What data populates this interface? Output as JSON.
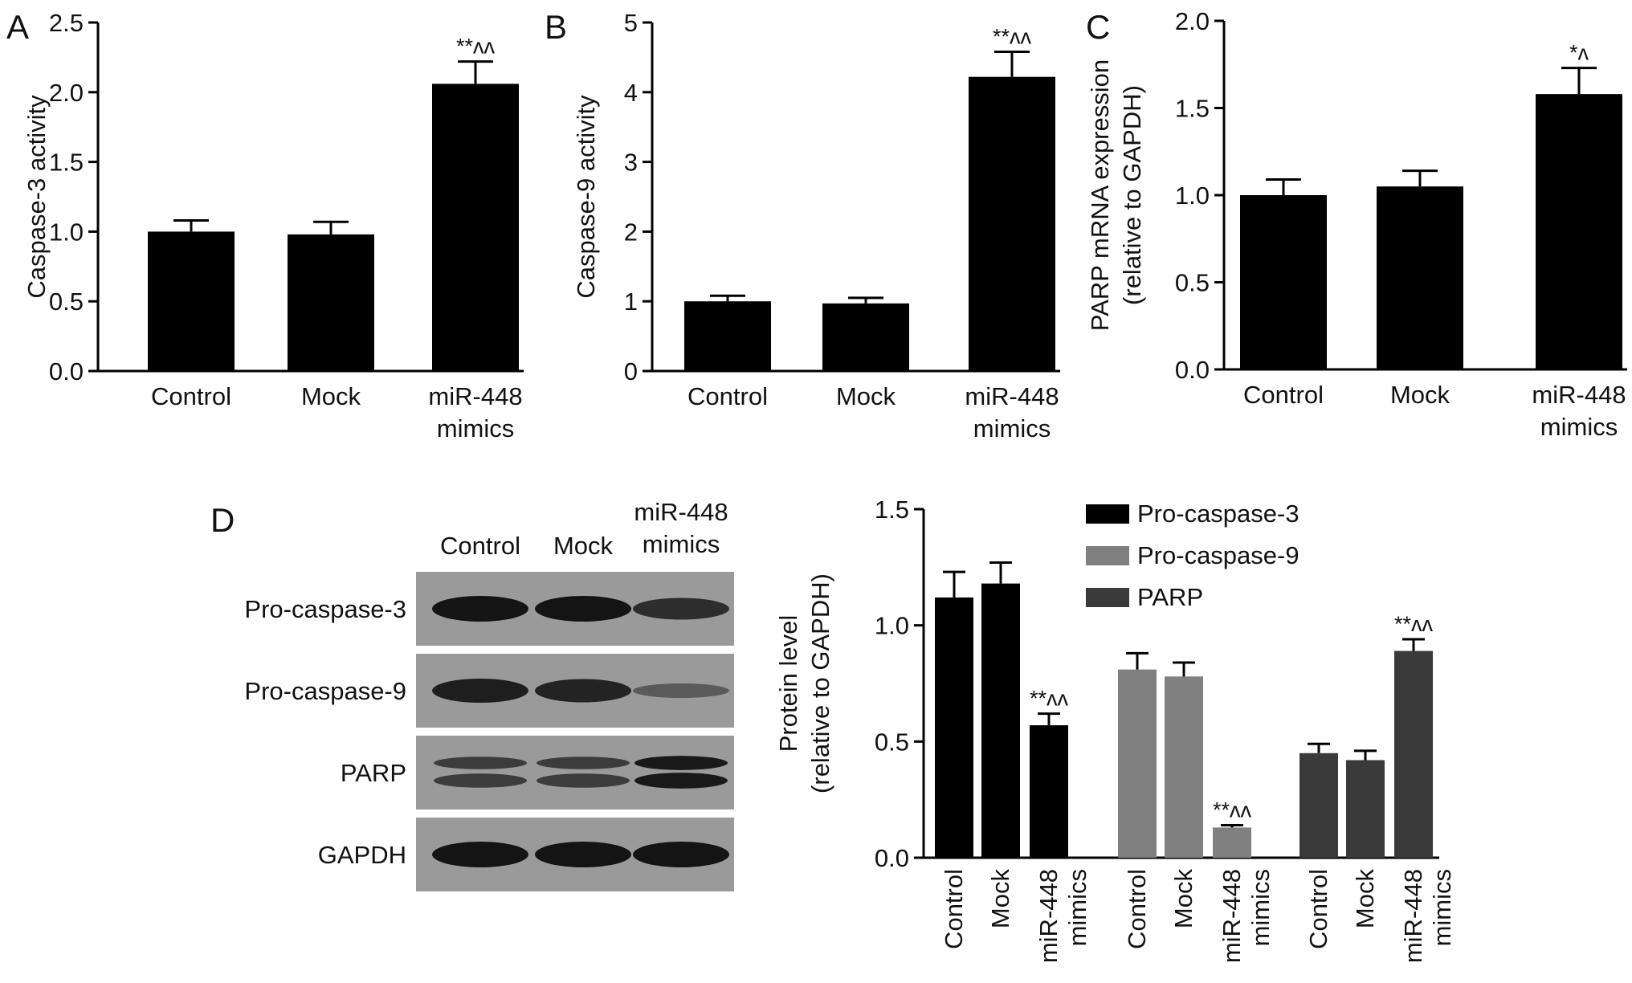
{
  "panels": {
    "A": {
      "letter": "A"
    },
    "B": {
      "letter": "B"
    },
    "C": {
      "letter": "C"
    },
    "D": {
      "letter": "D"
    }
  },
  "blot": {
    "lanes": [
      "Control",
      "Mock",
      "miR-448\nmimics"
    ],
    "rows": [
      {
        "label": "Pro-caspase-3",
        "intensity": [
          1.0,
          1.0,
          0.75
        ],
        "bands": 1
      },
      {
        "label": "Pro-caspase-9",
        "intensity": [
          0.9,
          0.85,
          0.3
        ],
        "bands": 1
      },
      {
        "label": "PARP",
        "intensity": [
          0.6,
          0.6,
          0.95
        ],
        "bands": 2
      },
      {
        "label": "GAPDH",
        "intensity": [
          1.0,
          1.0,
          1.0
        ],
        "bands": 1
      }
    ]
  },
  "chart_data": [
    {
      "type": "bar",
      "panel": "A",
      "categories": [
        "Control",
        "Mock",
        "miR-448\nmimics"
      ],
      "values": [
        1.0,
        0.98,
        2.06
      ],
      "errors": [
        0.08,
        0.09,
        0.16
      ],
      "annotations": [
        "",
        "",
        "**^^"
      ],
      "ylabel": "Caspase-3 activity",
      "ylim": [
        0,
        2.5
      ],
      "yticks": [
        "0.0",
        "0.5",
        "1.0",
        "1.5",
        "2.0",
        "2.5"
      ],
      "color": "#000000"
    },
    {
      "type": "bar",
      "panel": "B",
      "categories": [
        "Control",
        "Mock",
        "miR-448\nmimics"
      ],
      "values": [
        1.0,
        0.97,
        4.22
      ],
      "errors": [
        0.08,
        0.08,
        0.36
      ],
      "annotations": [
        "",
        "",
        "**^^"
      ],
      "ylabel": "Caspase-9 activity",
      "ylim": [
        0,
        5
      ],
      "yticks": [
        "0",
        "1",
        "2",
        "3",
        "4",
        "5"
      ],
      "color": "#000000"
    },
    {
      "type": "bar",
      "panel": "C",
      "categories": [
        "Control",
        "Mock",
        "miR-448\nmimics"
      ],
      "values": [
        1.0,
        1.05,
        1.58
      ],
      "errors": [
        0.09,
        0.09,
        0.15
      ],
      "annotations": [
        "",
        "",
        "*^"
      ],
      "ylabel": "PARP mRNA expression\n(relative to GAPDH)",
      "ylim": [
        0,
        2.0
      ],
      "yticks": [
        "0.0",
        "0.5",
        "1.0",
        "1.5",
        "2.0"
      ],
      "color": "#000000"
    },
    {
      "type": "bar",
      "panel": "D",
      "categories": [
        "Control",
        "Mock",
        "miR-448\nmimics"
      ],
      "series": [
        {
          "name": "Pro-caspase-3",
          "color": "#000000",
          "values": [
            1.12,
            1.18,
            0.57
          ],
          "errors": [
            0.11,
            0.09,
            0.05
          ],
          "annotations": [
            "",
            "",
            "**^^"
          ]
        },
        {
          "name": "Pro-caspase-9",
          "color": "#808080",
          "values": [
            0.81,
            0.78,
            0.13
          ],
          "errors": [
            0.07,
            0.06,
            0.01
          ],
          "annotations": [
            "",
            "",
            "**^^"
          ]
        },
        {
          "name": "PARP",
          "color": "#3a3a3a",
          "values": [
            0.45,
            0.42,
            0.89
          ],
          "errors": [
            0.04,
            0.04,
            0.05
          ],
          "annotations": [
            "",
            "",
            "**^^"
          ]
        }
      ],
      "ylabel": "Protein level\n(relative to GAPDH)",
      "ylim": [
        0,
        1.5
      ],
      "yticks": [
        "0.0",
        "0.5",
        "1.0",
        "1.5"
      ],
      "legend_position": "top-right"
    }
  ]
}
